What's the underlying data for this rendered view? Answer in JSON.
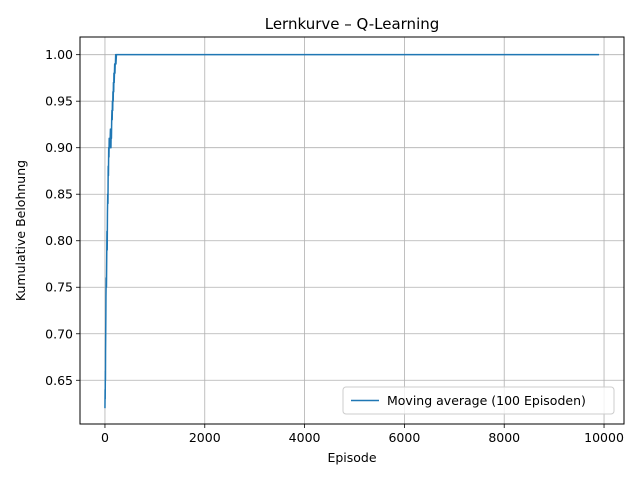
{
  "chart_data": {
    "type": "line",
    "title": "Lernkurve – Q-Learning",
    "xlabel": "Episode",
    "ylabel": "Kumulative Belohnung",
    "xlim": [
      -500,
      10400
    ],
    "ylim": [
      0.603,
      1.019
    ],
    "xticks": [
      0,
      2000,
      4000,
      6000,
      8000,
      10000
    ],
    "yticks": [
      0.65,
      0.7,
      0.75,
      0.8,
      0.85,
      0.9,
      0.95,
      1.0
    ],
    "xtick_labels": [
      "0",
      "2000",
      "4000",
      "6000",
      "8000",
      "10000"
    ],
    "ytick_labels": [
      "0.65",
      "0.70",
      "0.75",
      "0.80",
      "0.85",
      "0.90",
      "0.95",
      "1.00"
    ],
    "grid": true,
    "legend_position": "lower right",
    "series": [
      {
        "name": "Moving average (100 Episoden)",
        "color": "#1f77b4",
        "x": [
          0,
          3,
          5,
          8,
          10,
          12,
          15,
          18,
          20,
          25,
          30,
          35,
          40,
          45,
          50,
          55,
          60,
          65,
          70,
          75,
          80,
          85,
          90,
          95,
          100,
          105,
          110,
          115,
          120,
          125,
          130,
          135,
          140,
          145,
          150,
          155,
          160,
          165,
          170,
          175,
          180,
          185,
          190,
          195,
          200,
          205,
          210,
          215,
          220,
          230,
          240,
          260,
          300,
          500,
          1000,
          2000,
          3000,
          4000,
          5000,
          6000,
          7000,
          8000,
          9000,
          9900
        ],
        "y": [
          0.62,
          0.64,
          0.63,
          0.66,
          0.65,
          0.68,
          0.7,
          0.72,
          0.74,
          0.76,
          0.75,
          0.78,
          0.81,
          0.79,
          0.83,
          0.85,
          0.84,
          0.88,
          0.87,
          0.9,
          0.89,
          0.91,
          0.9,
          0.91,
          0.9,
          0.91,
          0.92,
          0.91,
          0.9,
          0.92,
          0.91,
          0.93,
          0.94,
          0.93,
          0.95,
          0.94,
          0.96,
          0.95,
          0.97,
          0.96,
          0.98,
          0.97,
          0.98,
          0.99,
          0.98,
          0.99,
          0.99,
          1.0,
          0.99,
          1.0,
          1.0,
          1.0,
          1.0,
          1.0,
          1.0,
          1.0,
          1.0,
          1.0,
          1.0,
          1.0,
          1.0,
          1.0,
          1.0,
          1.0
        ]
      }
    ]
  }
}
